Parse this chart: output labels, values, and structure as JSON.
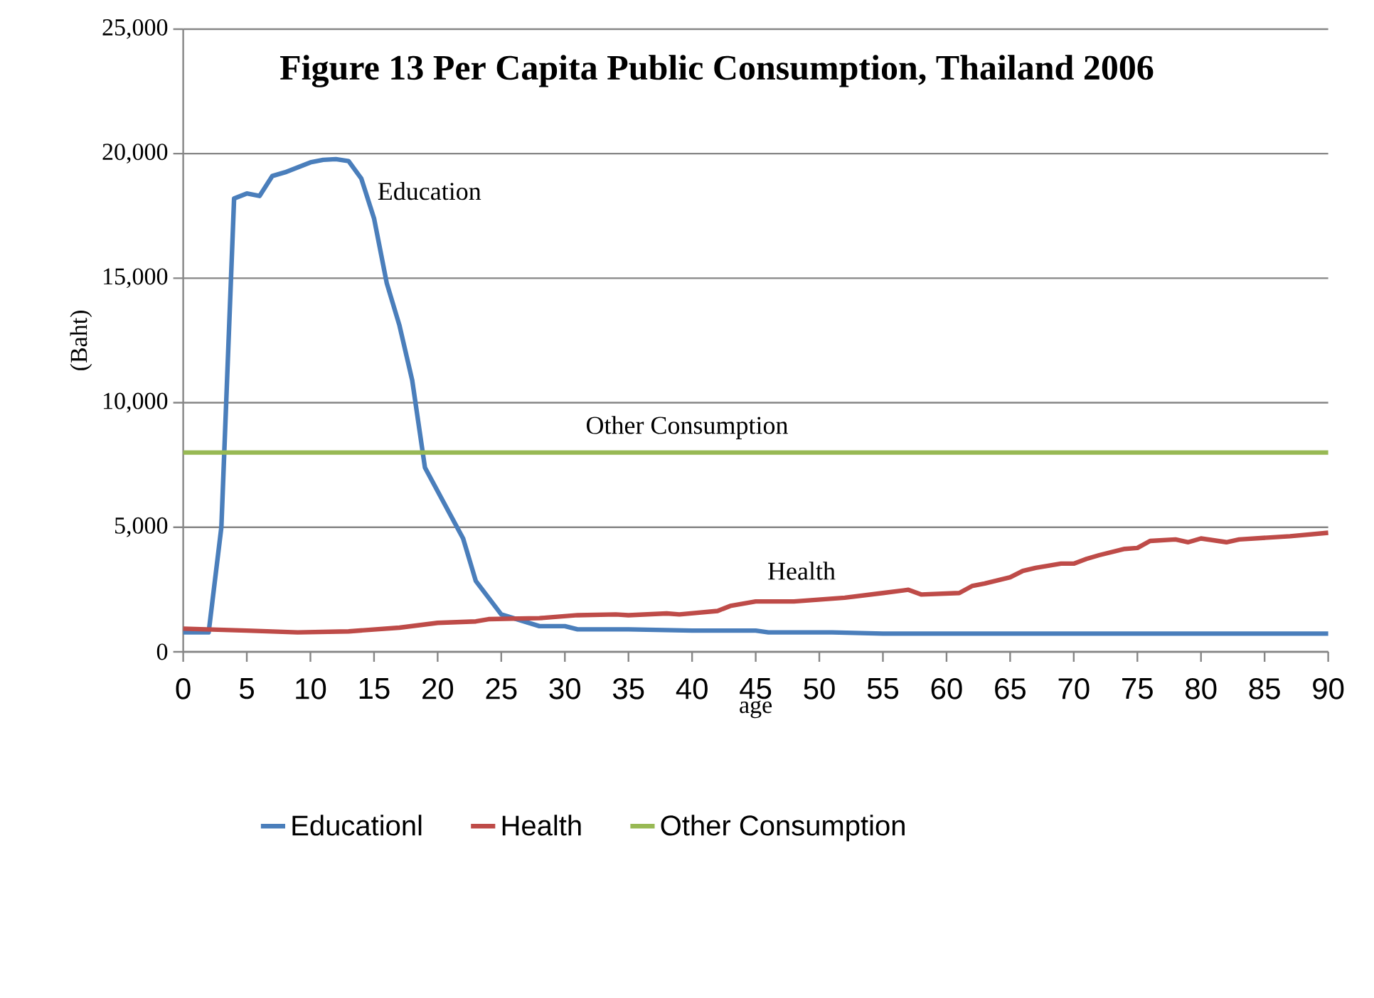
{
  "chart_data": {
    "type": "line",
    "title": "Figure 13 Per Capita Public Consumption, Thailand 2006",
    "xlabel": "age",
    "ylabel": "(Baht)",
    "xlim": [
      0,
      90
    ],
    "xticks": [
      0,
      5,
      10,
      15,
      20,
      25,
      30,
      35,
      40,
      45,
      50,
      55,
      60,
      65,
      70,
      75,
      80,
      85,
      90
    ],
    "ylim": [
      0,
      25000
    ],
    "yticks": [
      0,
      {
        "value": 5000,
        "label": "5,000"
      },
      {
        "value": 10000,
        "label": "10,000"
      },
      {
        "value": 15000,
        "label": "15,000"
      },
      {
        "value": 20000,
        "label": "20,000"
      },
      {
        "value": 25000,
        "label": "25,000"
      }
    ],
    "grid": "y",
    "legend": "bottom",
    "marker": "none",
    "line_style": "solid",
    "series": [
      {
        "name": "Educationl",
        "color": "#4a7ebb",
        "x": [
          0,
          2,
          3,
          4,
          5,
          6,
          7,
          8,
          9,
          10,
          11,
          12,
          13,
          14,
          15,
          16,
          17,
          18,
          19,
          22,
          23,
          25,
          28,
          30,
          31,
          35,
          40,
          45,
          46,
          51,
          55,
          90
        ],
        "values": [
          780,
          780,
          5000,
          18200,
          18400,
          18300,
          19100,
          19250,
          19450,
          19650,
          19750,
          19780,
          19700,
          19000,
          17400,
          14800,
          13100,
          10900,
          7400,
          4550,
          2840,
          1500,
          1030,
          1030,
          900,
          900,
          850,
          850,
          780,
          780,
          730,
          730
        ]
      },
      {
        "name": "Health",
        "color": "#be4b48",
        "x": [
          0,
          5,
          9,
          13,
          17,
          20,
          23,
          24,
          28,
          31,
          34,
          35,
          38,
          39,
          42,
          43,
          45,
          48,
          52,
          55,
          57,
          58,
          61,
          62,
          63,
          65,
          66,
          67,
          69,
          70,
          71,
          72,
          74,
          75,
          76,
          78,
          79,
          80,
          82,
          83,
          87,
          90
        ],
        "values": [
          930,
          850,
          780,
          820,
          970,
          1160,
          1220,
          1310,
          1350,
          1470,
          1500,
          1470,
          1540,
          1500,
          1640,
          1840,
          2020,
          2020,
          2170,
          2360,
          2490,
          2300,
          2360,
          2640,
          2740,
          2990,
          3250,
          3370,
          3540,
          3540,
          3730,
          3880,
          4130,
          4170,
          4450,
          4510,
          4400,
          4550,
          4400,
          4510,
          4640,
          4780
        ]
      },
      {
        "name": "Other Consumption",
        "color": "#98b954",
        "x": [
          0,
          90
        ],
        "values": [
          8000,
          8000
        ]
      }
    ],
    "annotations": [
      "Education",
      "Other Consumption",
      "Health"
    ]
  }
}
